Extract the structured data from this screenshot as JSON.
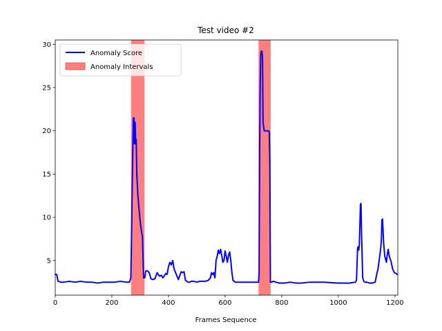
{
  "chart_data": {
    "type": "line",
    "title": "Test video #2",
    "xlabel": "Frames Sequence",
    "ylabel": "",
    "xlim": [
      0,
      1210
    ],
    "ylim": [
      1.0,
      30.5
    ],
    "xticks": [
      0,
      200,
      400,
      600,
      800,
      1000,
      1200
    ],
    "yticks": [
      5,
      10,
      15,
      20,
      25,
      30
    ],
    "grid": false,
    "legend_position": "top-left",
    "colors": {
      "series": "#0000ff",
      "interval": "#ff0000"
    },
    "series": [
      {
        "name": "Anomaly Score",
        "x": [
          0,
          5,
          10,
          20,
          30,
          50,
          70,
          90,
          110,
          130,
          150,
          170,
          190,
          210,
          230,
          250,
          262,
          267,
          270,
          272,
          274,
          276,
          278,
          280,
          282,
          284,
          286,
          288,
          292,
          296,
          300,
          304,
          308,
          312,
          316,
          320,
          326,
          332,
          338,
          345,
          352,
          360,
          368,
          375,
          380,
          385,
          390,
          395,
          400,
          405,
          410,
          415,
          420,
          425,
          430,
          435,
          440,
          445,
          450,
          455,
          460,
          465,
          470,
          475,
          480,
          490,
          500,
          510,
          520,
          530,
          540,
          548,
          552,
          556,
          560,
          564,
          568,
          572,
          576,
          580,
          584,
          588,
          592,
          596,
          600,
          604,
          608,
          612,
          616,
          620,
          624,
          628,
          632,
          636,
          640,
          650,
          670,
          690,
          710,
          716,
          718,
          720,
          722,
          724,
          726,
          728,
          730,
          732,
          734,
          738,
          742,
          746,
          750,
          754,
          756,
          758,
          760,
          762,
          764,
          770,
          790,
          810,
          830,
          850,
          870,
          900,
          950,
          1000,
          1040,
          1060,
          1064,
          1068,
          1070,
          1072,
          1074,
          1076,
          1078,
          1080,
          1082,
          1084,
          1086,
          1090,
          1095,
          1100,
          1110,
          1120,
          1130,
          1136,
          1140,
          1144,
          1148,
          1150,
          1152,
          1154,
          1156,
          1160,
          1164,
          1168,
          1170,
          1172,
          1176,
          1180,
          1186,
          1192,
          1198,
          1204,
          1208
        ],
        "values": [
          3.4,
          3.4,
          2.6,
          2.5,
          2.5,
          2.6,
          2.5,
          2.6,
          2.5,
          2.5,
          2.4,
          2.5,
          2.5,
          2.5,
          2.6,
          2.5,
          2.5,
          3.0,
          9.0,
          14.0,
          18.0,
          21.5,
          21.5,
          18.5,
          21.0,
          18.5,
          19.0,
          15.0,
          12.5,
          11.0,
          9.5,
          8.5,
          7.8,
          3.0,
          3.0,
          3.8,
          3.8,
          3.6,
          2.9,
          2.8,
          2.9,
          3.6,
          3.2,
          3.3,
          3.0,
          3.2,
          3.5,
          3.4,
          4.3,
          4.8,
          4.5,
          5.0,
          4.0,
          3.6,
          3.2,
          2.8,
          3.3,
          3.7,
          3.6,
          3.7,
          2.7,
          2.6,
          2.5,
          2.5,
          2.6,
          2.6,
          2.5,
          2.6,
          2.6,
          2.6,
          2.7,
          3.0,
          3.6,
          3.4,
          3.6,
          3.0,
          5.0,
          5.5,
          6.2,
          5.8,
          6.3,
          5.6,
          4.8,
          5.0,
          6.1,
          5.5,
          4.8,
          5.6,
          6.0,
          5.0,
          3.6,
          2.7,
          2.6,
          2.5,
          2.5,
          2.5,
          2.5,
          2.5,
          2.5,
          2.5,
          2.5,
          3.5,
          18.0,
          25.5,
          28.8,
          29.2,
          29.2,
          28.5,
          21.0,
          20.0,
          20.0,
          20.0,
          20.0,
          20.0,
          19.8,
          16.5,
          2.5,
          2.5,
          2.5,
          2.6,
          2.4,
          2.4,
          2.5,
          2.4,
          2.4,
          2.5,
          2.5,
          2.4,
          2.4,
          2.5,
          2.7,
          6.5,
          6.6,
          6.2,
          6.8,
          9.0,
          11.5,
          11.6,
          8.0,
          5.5,
          3.0,
          2.6,
          2.5,
          2.5,
          2.4,
          2.4,
          2.5,
          3.5,
          4.0,
          5.0,
          6.0,
          6.5,
          7.5,
          9.7,
          9.8,
          7.0,
          5.5,
          5.0,
          4.8,
          5.5,
          6.3,
          5.5,
          4.9,
          4.0,
          3.6,
          3.5,
          3.4
        ]
      }
    ],
    "intervals": {
      "name": "Anomaly Intervals",
      "ranges": [
        [
          268,
          315
        ],
        [
          718,
          761
        ]
      ]
    }
  }
}
